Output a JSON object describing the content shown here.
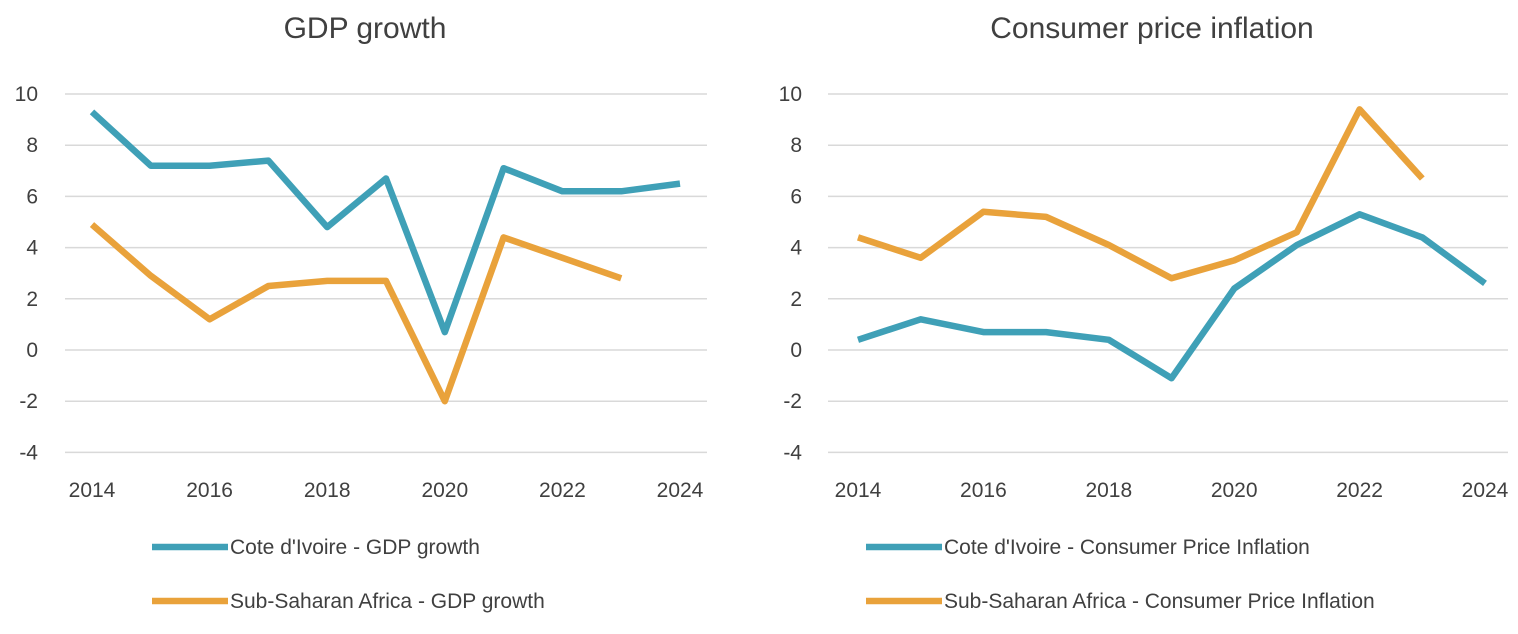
{
  "chart_data": [
    {
      "type": "line",
      "title": "GDP growth",
      "categories": [
        2014,
        2015,
        2016,
        2017,
        2018,
        2019,
        2020,
        2021,
        2022,
        2023,
        2024
      ],
      "x_tick_labels": [
        "2014",
        "2016",
        "2018",
        "2020",
        "2022",
        "2024"
      ],
      "y_tick_labels": [
        "10",
        "8",
        "6",
        "4",
        "2",
        "0",
        "-2",
        "-4"
      ],
      "ylim": [
        -4,
        10
      ],
      "grid": true,
      "legend_position": "bottom",
      "series": [
        {
          "name": "Cote d'Ivoire - GDP growth",
          "color": "#3fa0b7",
          "values": [
            9.3,
            7.2,
            7.2,
            7.4,
            4.8,
            6.7,
            0.7,
            7.1,
            6.2,
            6.2,
            6.5
          ]
        },
        {
          "name": "Sub-Saharan Africa - GDP growth",
          "color": "#e9a23b",
          "values": [
            4.9,
            2.9,
            1.2,
            2.5,
            2.7,
            2.7,
            -2.0,
            4.4,
            3.6,
            2.8,
            null
          ]
        }
      ]
    },
    {
      "type": "line",
      "title": "Consumer price inflation",
      "categories": [
        2014,
        2015,
        2016,
        2017,
        2018,
        2019,
        2020,
        2021,
        2022,
        2023,
        2024
      ],
      "x_tick_labels": [
        "2014",
        "2016",
        "2018",
        "2020",
        "2022",
        "2024"
      ],
      "y_tick_labels": [
        "10",
        "8",
        "6",
        "4",
        "2",
        "0",
        "-2",
        "-4"
      ],
      "ylim": [
        -4,
        10
      ],
      "grid": true,
      "legend_position": "bottom",
      "series": [
        {
          "name": "Cote d'Ivoire - Consumer Price Inflation",
          "color": "#3fa0b7",
          "values": [
            0.4,
            1.2,
            0.7,
            0.7,
            0.4,
            -1.1,
            2.4,
            4.1,
            5.3,
            4.4,
            2.6
          ]
        },
        {
          "name": "Sub-Saharan Africa - Consumer Price Inflation",
          "color": "#e9a23b",
          "values": [
            4.4,
            3.6,
            5.4,
            5.2,
            4.1,
            2.8,
            3.5,
            4.6,
            9.4,
            6.7,
            null
          ]
        }
      ]
    }
  ]
}
